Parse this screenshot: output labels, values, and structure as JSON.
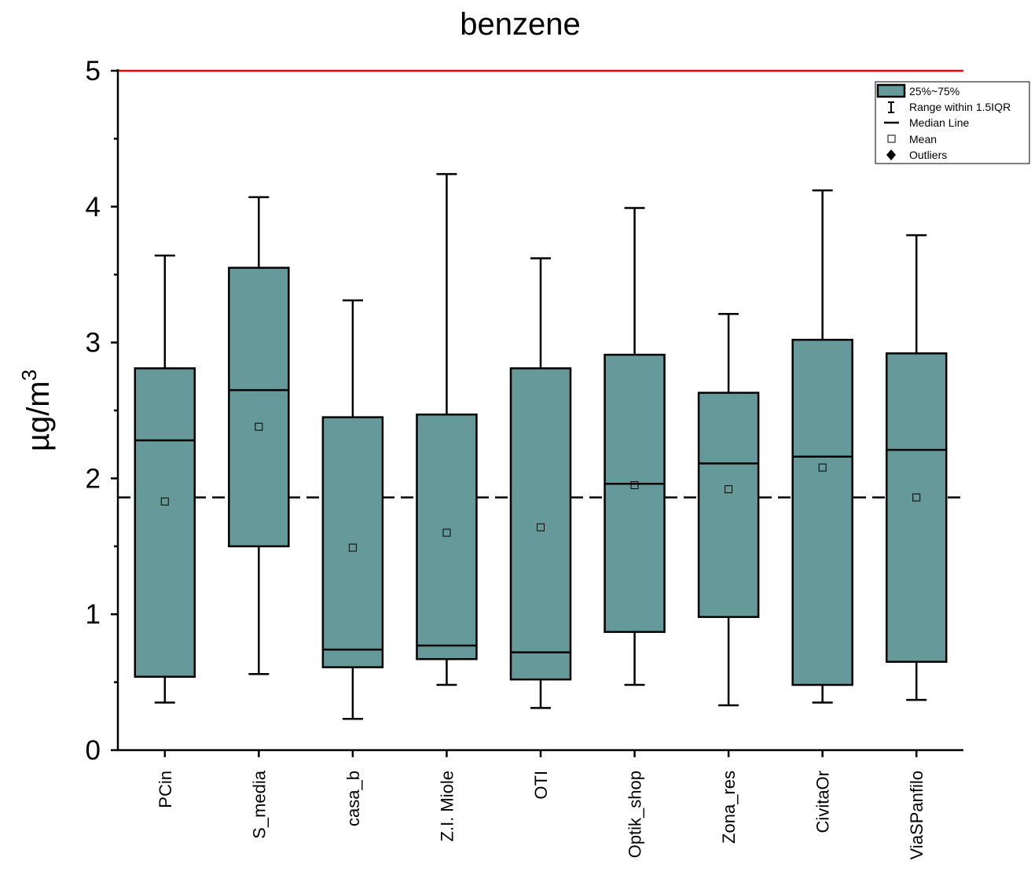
{
  "chart_data": {
    "type": "box",
    "title": "benzene",
    "ylabel": "µg/m",
    "ylabel_superscript": "3",
    "xlabel": "",
    "ylim": [
      0,
      5
    ],
    "yticks_major": [
      0,
      1,
      2,
      3,
      4,
      5
    ],
    "yticks_minor": [
      0.5,
      1.5,
      2.5,
      3.5,
      4.5
    ],
    "box_color": "#669999",
    "reference_lines": [
      {
        "value": 5,
        "style": "solid",
        "color": "#ff0000"
      },
      {
        "value": 1.86,
        "style": "dashed",
        "color": "#000000"
      }
    ],
    "grid": false,
    "legend_position": "top-right",
    "legend": {
      "box": "25%~75%",
      "whisker": "Range within 1.5IQR",
      "median": "Median Line",
      "mean": "Mean",
      "outliers": "Outliers"
    },
    "categories": [
      "PCin",
      "S_media",
      "casa_b",
      "Z.I. Miole",
      "OTI",
      "Optik_shop",
      "Zona_res",
      "CivitaOr",
      "ViaSPanfilo"
    ],
    "boxes": [
      {
        "whisker_low": 0.35,
        "q1": 0.54,
        "median": 2.28,
        "q3": 2.81,
        "whisker_high": 3.64,
        "mean": 1.83
      },
      {
        "whisker_low": 0.56,
        "q1": 1.5,
        "median": 2.65,
        "q3": 3.55,
        "whisker_high": 4.07,
        "mean": 2.38
      },
      {
        "whisker_low": 0.23,
        "q1": 0.61,
        "median": 0.74,
        "q3": 2.45,
        "whisker_high": 3.31,
        "mean": 1.49
      },
      {
        "whisker_low": 0.48,
        "q1": 0.67,
        "median": 0.77,
        "q3": 2.47,
        "whisker_high": 4.24,
        "mean": 1.6
      },
      {
        "whisker_low": 0.31,
        "q1": 0.52,
        "median": 0.72,
        "q3": 2.81,
        "whisker_high": 3.62,
        "mean": 1.64
      },
      {
        "whisker_low": 0.48,
        "q1": 0.87,
        "median": 1.96,
        "q3": 2.91,
        "whisker_high": 3.99,
        "mean": 1.95
      },
      {
        "whisker_low": 0.33,
        "q1": 0.98,
        "median": 2.11,
        "q3": 2.63,
        "whisker_high": 3.21,
        "mean": 1.92
      },
      {
        "whisker_low": 0.35,
        "q1": 0.48,
        "median": 2.16,
        "q3": 3.02,
        "whisker_high": 4.12,
        "mean": 2.08
      },
      {
        "whisker_low": 0.37,
        "q1": 0.65,
        "median": 2.21,
        "q3": 2.92,
        "whisker_high": 3.79,
        "mean": 1.86
      }
    ]
  }
}
